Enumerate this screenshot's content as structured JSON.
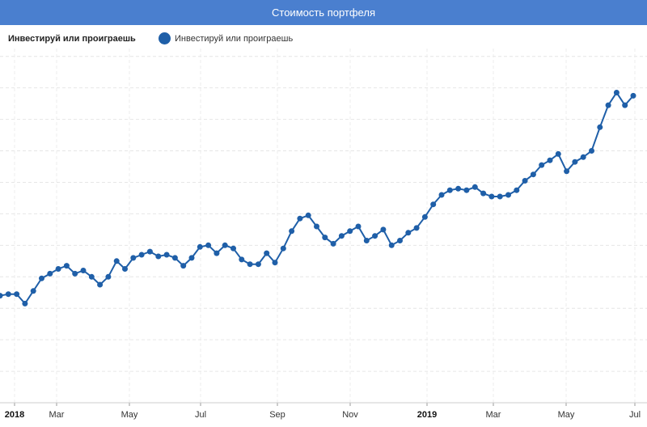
{
  "header": {
    "title": "Стоимость портфеля"
  },
  "legend": {
    "title": "Инвестируй или проиграешь",
    "item": "Инвестируй или проиграешь",
    "color": "#1f5fa8"
  },
  "chart_data": {
    "type": "line",
    "title": "Стоимость портфеля",
    "series": [
      {
        "name": "Инвестируй или проиграешь",
        "color": "#1f5fa8",
        "values": [
          68,
          69,
          69,
          63,
          71,
          79,
          82,
          85,
          87,
          82,
          84,
          80,
          75,
          80,
          90,
          85,
          92,
          94,
          96,
          93,
          94,
          92,
          87,
          92,
          99,
          100,
          95,
          100,
          98,
          91,
          88,
          88,
          95,
          89,
          98,
          109,
          117,
          119,
          112,
          105,
          101,
          106,
          109,
          112,
          103,
          106,
          110,
          100,
          103,
          108,
          111,
          118,
          126,
          132,
          135,
          136,
          135,
          137,
          133,
          131,
          131,
          132,
          135,
          141,
          145,
          151,
          154,
          158,
          147,
          153,
          156,
          160,
          175,
          189,
          197,
          189,
          195
        ]
      }
    ],
    "x_ticks": [
      "2018",
      "Mar",
      "May",
      "Jul",
      "Sep",
      "Nov",
      "2019",
      "Mar",
      "May",
      "Jul"
    ],
    "x_ticks_bold": [
      "2018",
      "2019"
    ],
    "y_ticks": [
      "",
      "",
      "",
      "",
      "",
      "",
      "",
      "",
      "",
      "",
      "",
      ""
    ],
    "grid": true,
    "legend_position": "top-left"
  }
}
